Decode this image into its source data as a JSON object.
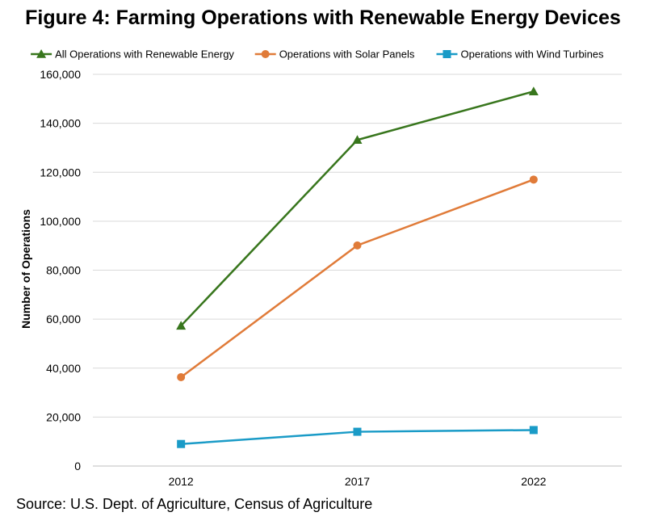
{
  "title": "Figure 4: Farming Operations with Renewable Energy Devices",
  "source": "Source: U.S. Dept. of Agriculture, Census of Agriculture",
  "chart_data": {
    "type": "line",
    "x": [
      "2012",
      "2017",
      "2022"
    ],
    "ylabel": "Number of Operations",
    "xlabel": "",
    "ylim": [
      0,
      160000
    ],
    "yticks": [
      0,
      20000,
      40000,
      60000,
      80000,
      100000,
      120000,
      140000,
      160000
    ],
    "ytick_labels": [
      "0",
      "20,000",
      "40,000",
      "60,000",
      "80,000",
      "100,000",
      "120,000",
      "140,000",
      "160,000"
    ],
    "grid": true,
    "legend": "top",
    "series": [
      {
        "name": "All Operations with Renewable Energy",
        "values": [
          57300,
          133200,
          153000
        ],
        "color": "#38761d",
        "marker": "triangle"
      },
      {
        "name": "Operations with Solar Panels",
        "values": [
          36300,
          90100,
          117000
        ],
        "color": "#e07b39",
        "marker": "circle"
      },
      {
        "name": "Operations with Wind Turbines",
        "values": [
          9000,
          14000,
          14700
        ],
        "color": "#1a9bc7",
        "marker": "square"
      }
    ]
  }
}
